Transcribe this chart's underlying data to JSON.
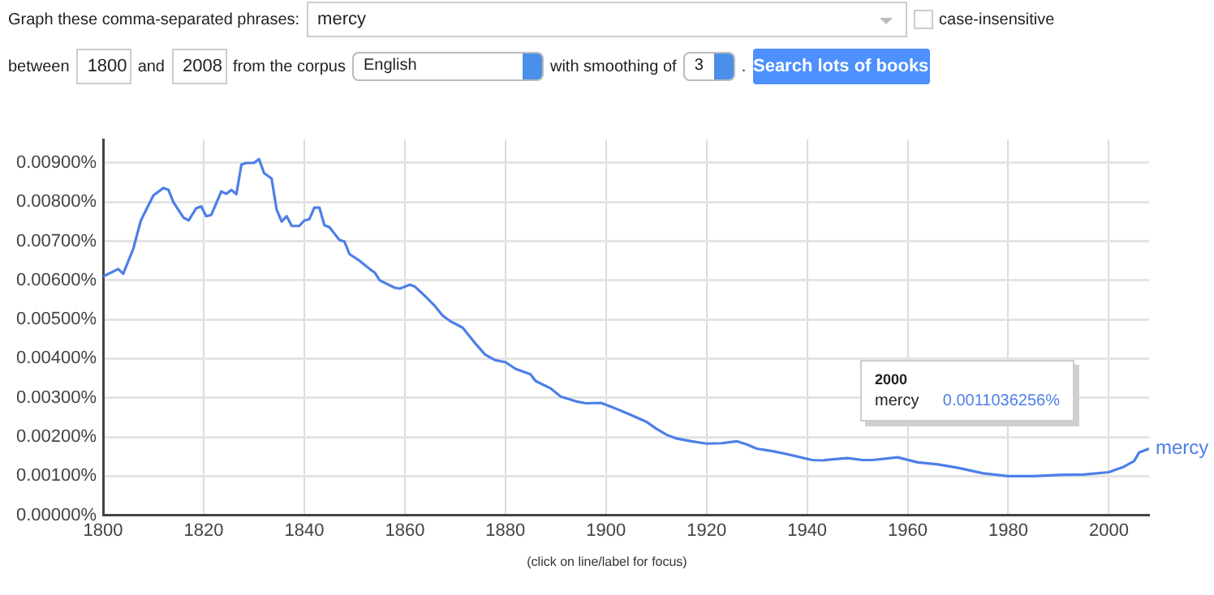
{
  "chart_data": {
    "type": "line",
    "xlim": [
      1800,
      2008
    ],
    "xticks": [
      1800,
      1820,
      1840,
      1860,
      1880,
      1900,
      1920,
      1940,
      1960,
      1980,
      2000
    ],
    "ylim": [
      0,
      0.0096
    ],
    "yticks": [
      {
        "value": 0,
        "label": "0.00000%"
      },
      {
        "value": 0.001,
        "label": "0.00100%"
      },
      {
        "value": 0.002,
        "label": "0.00200%"
      },
      {
        "value": 0.003,
        "label": "0.00300%"
      },
      {
        "value": 0.004,
        "label": "0.00400%"
      },
      {
        "value": 0.005,
        "label": "0.00500%"
      },
      {
        "value": 0.006,
        "label": "0.00600%"
      },
      {
        "value": 0.007,
        "label": "0.00700%"
      },
      {
        "value": 0.008,
        "label": "0.00800%"
      },
      {
        "value": 0.009,
        "label": "0.00900%"
      }
    ],
    "grid": true,
    "legend": false,
    "marker": "none",
    "line_style": "solid",
    "series": [
      {
        "name": "mercy",
        "color": "#4d7fe8",
        "x": [
          1800,
          1803,
          1804,
          1806,
          1807.5,
          1810,
          1812,
          1813,
          1814,
          1816,
          1817,
          1818.5,
          1819.5,
          1820.5,
          1821.5,
          1823.5,
          1824.5,
          1825.5,
          1826.5,
          1827.5,
          1828.5,
          1830,
          1831,
          1832,
          1833.5,
          1834.5,
          1835.5,
          1836.5,
          1837.5,
          1839,
          1840,
          1841,
          1842,
          1843,
          1844,
          1845,
          1847,
          1848,
          1849,
          1851,
          1853,
          1854,
          1855,
          1858,
          1859,
          1861,
          1862,
          1864,
          1866,
          1867.5,
          1869,
          1871.5,
          1874,
          1876,
          1878,
          1880,
          1882,
          1885,
          1886,
          1889,
          1891,
          1894,
          1896,
          1899,
          1901,
          1903,
          1905,
          1908,
          1910,
          1912,
          1914,
          1917,
          1920,
          1923,
          1926,
          1928,
          1930,
          1933,
          1936,
          1938,
          1941,
          1943,
          1946,
          1948,
          1951,
          1953,
          1958,
          1962,
          1966,
          1970,
          1975,
          1980,
          1985,
          1990,
          1995,
          2000,
          2003,
          2005,
          2006,
          2008
        ],
        "values": [
          0.0061,
          0.00629,
          0.00617,
          0.00681,
          0.00753,
          0.00817,
          0.00836,
          0.00831,
          0.00799,
          0.0076,
          0.00753,
          0.00784,
          0.00789,
          0.00764,
          0.00767,
          0.00827,
          0.00821,
          0.00831,
          0.0082,
          0.00896,
          0.009,
          0.009,
          0.0091,
          0.00874,
          0.0086,
          0.00781,
          0.0075,
          0.00764,
          0.00739,
          0.00739,
          0.00753,
          0.00756,
          0.00786,
          0.00786,
          0.00741,
          0.00736,
          0.00703,
          0.00699,
          0.00667,
          0.0065,
          0.00629,
          0.0062,
          0.006,
          0.00581,
          0.00579,
          0.00589,
          0.00584,
          0.0056,
          0.00534,
          0.0051,
          0.00496,
          0.00479,
          0.00439,
          0.0041,
          0.00396,
          0.00391,
          0.00374,
          0.0036,
          0.00343,
          0.00324,
          0.00303,
          0.00291,
          0.00286,
          0.00287,
          0.00277,
          0.00267,
          0.00256,
          0.00239,
          0.00221,
          0.00206,
          0.00196,
          0.00189,
          0.00183,
          0.00184,
          0.00189,
          0.00181,
          0.0017,
          0.00164,
          0.00156,
          0.0015,
          0.00141,
          0.0014,
          0.00144,
          0.00146,
          0.00141,
          0.00141,
          0.00148,
          0.00135,
          0.0013,
          0.00121,
          0.00107,
          0.001,
          0.001,
          0.00103,
          0.00104,
          0.0011,
          0.00124,
          0.00138,
          0.0016,
          0.0017
        ]
      }
    ],
    "annotations": [
      "Graph these comma-separated phrases:",
      "case-insensitive",
      "between",
      "and",
      "from the corpus",
      "English",
      "with smoothing of",
      "3",
      ".",
      "Search lots of books",
      "(click on line/label for focus)",
      "1800",
      "2008",
      "2000",
      "0.0011036256%"
    ]
  }
}
